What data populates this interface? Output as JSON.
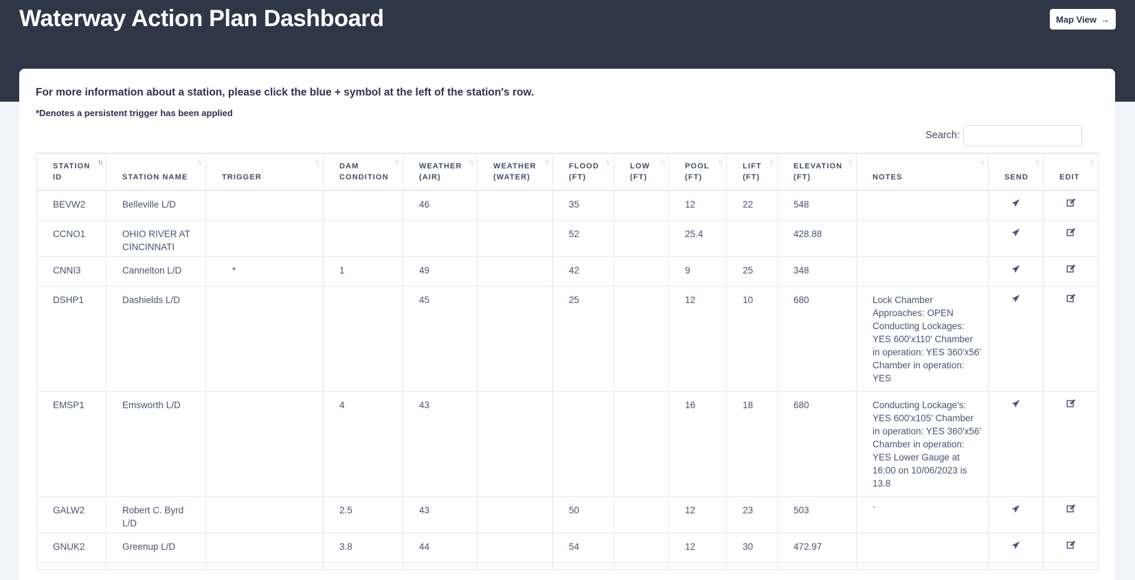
{
  "header": {
    "title": "Waterway Action Plan Dashboard",
    "map_view_label": "Map View"
  },
  "instructions": "For more information about a station, please click the blue + symbol at the left of the station's row.",
  "trigger_note": "*Denotes a persistent trigger has been applied",
  "search": {
    "label": "Search:",
    "value": ""
  },
  "table": {
    "columns": [
      "STATION ID",
      "STATION NAME",
      "TRIGGER",
      "DAM CONDITION",
      "WEATHER (AIR)",
      "WEATHER (WATER)",
      "FLOOD (FT)",
      "LOW (FT)",
      "POOL (FT)",
      "LIFT (FT)",
      "ELEVATION (FT)",
      "NOTES",
      "SEND",
      "EDIT"
    ],
    "sorted_column": 0,
    "rows": [
      [
        "BEVW2",
        "Belleville L/D",
        "",
        "",
        "46",
        "",
        "35",
        "",
        "12",
        "22",
        "548",
        ""
      ],
      [
        "CCNO1",
        "OHIO RIVER AT CINCINNATI",
        "",
        "",
        "",
        "",
        "52",
        "",
        "25.4",
        "",
        "428.88",
        ""
      ],
      [
        "CNNI3",
        "Cannelton L/D",
        "*",
        "1",
        "49",
        "",
        "42",
        "",
        "9",
        "25",
        "348",
        ""
      ],
      [
        "DSHP1",
        "Dashields L/D",
        "",
        "",
        "45",
        "",
        "25",
        "",
        "12",
        "10",
        "680",
        "Lock Chamber Approaches: OPEN Conducting Lockages: YES  600'x110' Chamber in operation: YES 360'x56' Chamber in operation: YES"
      ],
      [
        "EMSP1",
        "Emsworth L/D",
        "",
        "4",
        "43",
        "",
        "",
        "",
        "16",
        "18",
        "680",
        "Conducting Lockage's: YES 600'x105' Chamber in operation: YES 360'x56' Chamber in operation: YES Lower Gauge at 16:00 on 10/06/2023 is 13.8"
      ],
      [
        "GALW2",
        "Robert C. Byrd L/D",
        "",
        "2.5",
        "43",
        "",
        "50",
        "",
        "12",
        "23",
        "503",
        "`"
      ],
      [
        "GNUK2",
        "Greenup L/D",
        "",
        "3.8",
        "44",
        "",
        "54",
        "",
        "12",
        "30",
        "472.97",
        ""
      ],
      [
        "",
        "",
        "",
        "",
        "",
        "",
        "",
        "",
        "",
        "",
        "",
        ""
      ]
    ]
  },
  "icons": {
    "send": "paper-plane-icon",
    "edit": "edit-icon",
    "sort": "sort-icon",
    "map": "arrow-right-icon"
  }
}
